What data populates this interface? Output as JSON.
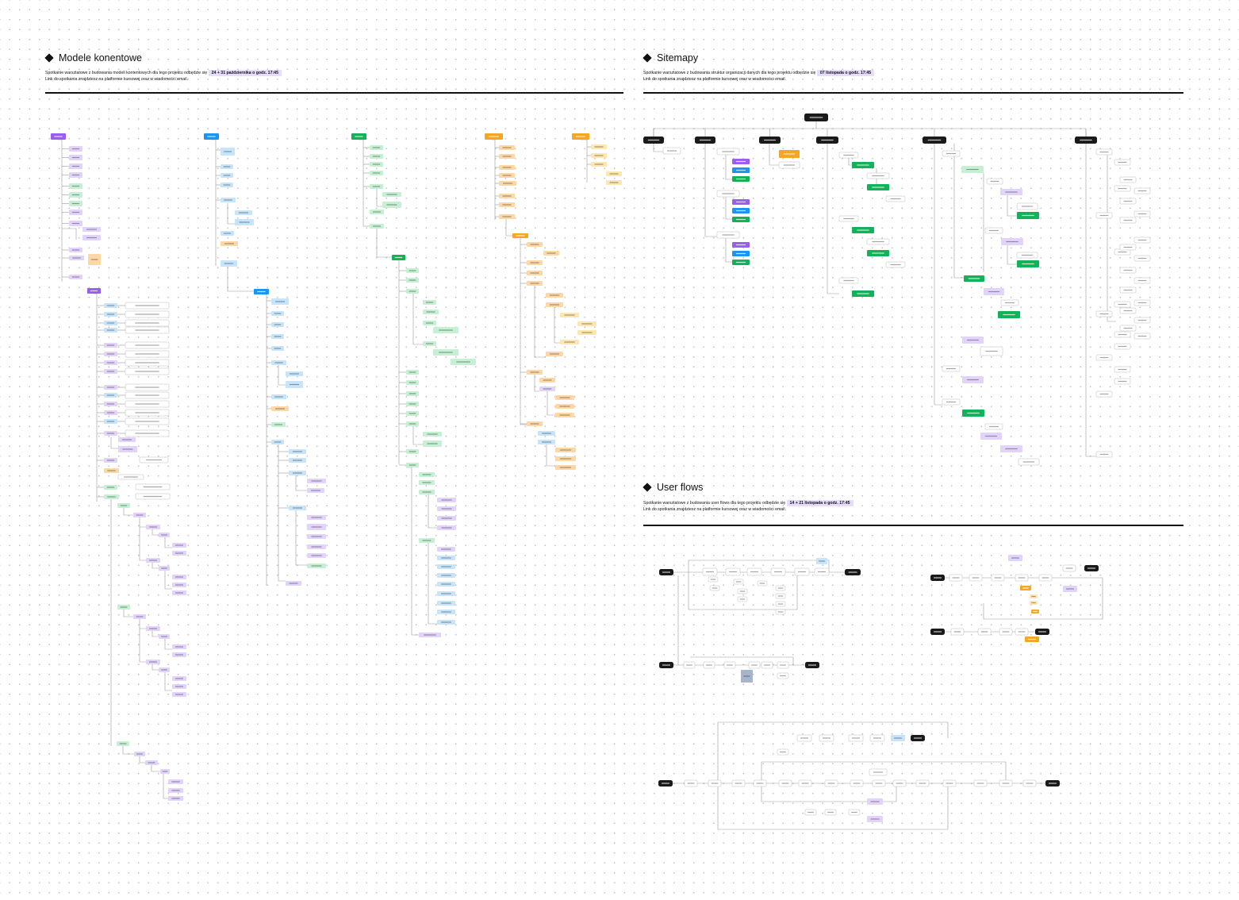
{
  "sections": {
    "content_models": {
      "title": "Modele konentowe",
      "desc_before": "Spotkanie warsztatowe z budowania modeli kontentowych dla tego projektu odbędzie się",
      "date": "24 + 31 października o godz. 17:45",
      "desc_after": "Link do spotkania znajdziesz na platformie kursowej oraz w wiadomości email."
    },
    "sitemaps": {
      "title": "Sitemapy",
      "desc_before": "Spotkanie warsztatowe z budowania struktur organizacji danych dla tego projektu odbędzie się",
      "date": "07 listopada o godz. 17:45",
      "desc_after": "Link do spotkania znajdziesz na platformie kursowej oraz w wiadomości email."
    },
    "user_flows": {
      "title": "User flows",
      "desc_before": "Spotkanie warsztatowe z budowania user flows dla tego projektu odbędzie się",
      "date": "14 + 21 listopada o godz. 17:45",
      "desc_after": "Link do spotkania znajdziesz na platformie kursowej oraz w wiadomości email."
    }
  },
  "colors": {
    "purple": "#9b5cf0",
    "purple_light": "#e2d3fb",
    "blue": "#1b95f2",
    "blue_light": "#c6e5fb",
    "green": "#12b259",
    "green_light": "#c6f0d3",
    "orange": "#f5a623",
    "orange_light": "#fed7a6",
    "yellow_light": "#fde7b0",
    "black": "#1a1a1a",
    "slate": "#a7b4c9",
    "connector": "#9a9a9a"
  }
}
